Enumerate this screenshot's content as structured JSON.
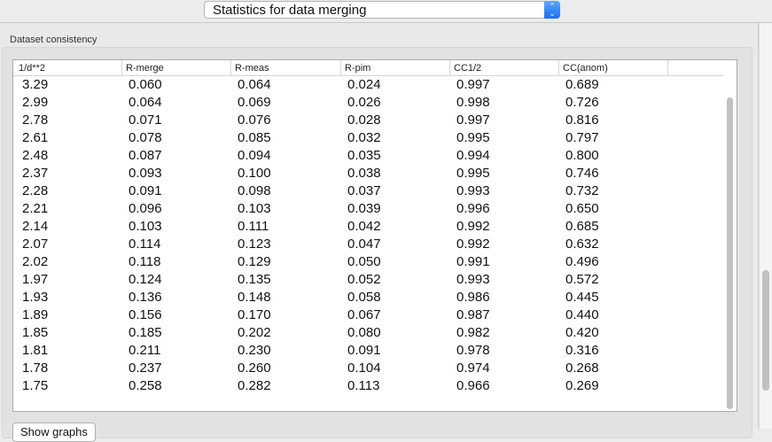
{
  "header": {
    "select_value": "Statistics for data merging",
    "select_icon": "updown-chevron-icon"
  },
  "group": {
    "title": "Dataset consistency"
  },
  "table": {
    "columns": [
      "1/d**2",
      "R-merge",
      "R-meas",
      "R-pim",
      "CC1/2",
      "CC(anom)"
    ],
    "rows": [
      [
        "3.29",
        "0.060",
        "0.064",
        "0.024",
        "0.997",
        "0.689"
      ],
      [
        "2.99",
        "0.064",
        "0.069",
        "0.026",
        "0.998",
        "0.726"
      ],
      [
        "2.78",
        "0.071",
        "0.076",
        "0.028",
        "0.997",
        "0.816"
      ],
      [
        "2.61",
        "0.078",
        "0.085",
        "0.032",
        "0.995",
        "0.797"
      ],
      [
        "2.48",
        "0.087",
        "0.094",
        "0.035",
        "0.994",
        "0.800"
      ],
      [
        "2.37",
        "0.093",
        "0.100",
        "0.038",
        "0.995",
        "0.746"
      ],
      [
        "2.28",
        "0.091",
        "0.098",
        "0.037",
        "0.993",
        "0.732"
      ],
      [
        "2.21",
        "0.096",
        "0.103",
        "0.039",
        "0.996",
        "0.650"
      ],
      [
        "2.14",
        "0.103",
        "0.111",
        "0.042",
        "0.992",
        "0.685"
      ],
      [
        "2.07",
        "0.114",
        "0.123",
        "0.047",
        "0.992",
        "0.632"
      ],
      [
        "2.02",
        "0.118",
        "0.129",
        "0.050",
        "0.991",
        "0.496"
      ],
      [
        "1.97",
        "0.124",
        "0.135",
        "0.052",
        "0.993",
        "0.572"
      ],
      [
        "1.93",
        "0.136",
        "0.148",
        "0.058",
        "0.986",
        "0.445"
      ],
      [
        "1.89",
        "0.156",
        "0.170",
        "0.067",
        "0.987",
        "0.440"
      ],
      [
        "1.85",
        "0.185",
        "0.202",
        "0.080",
        "0.982",
        "0.420"
      ],
      [
        "1.81",
        "0.211",
        "0.230",
        "0.091",
        "0.978",
        "0.316"
      ],
      [
        "1.78",
        "0.237",
        "0.260",
        "0.104",
        "0.974",
        "0.268"
      ],
      [
        "1.75",
        "0.258",
        "0.282",
        "0.113",
        "0.966",
        "0.269"
      ]
    ]
  },
  "footer": {
    "show_graphs_label": "Show graphs"
  }
}
